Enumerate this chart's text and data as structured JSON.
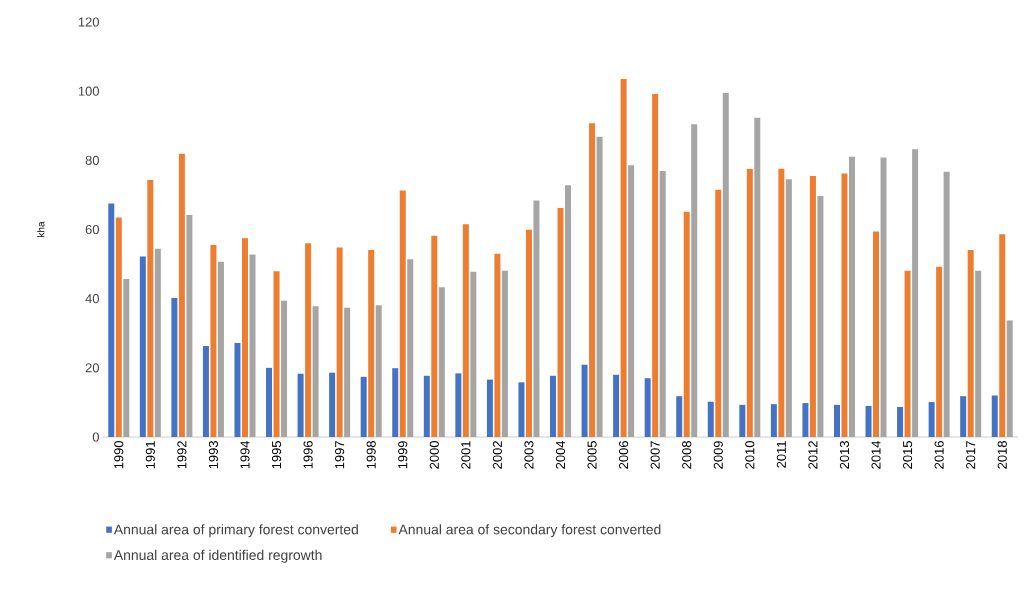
{
  "chart_data": {
    "type": "bar",
    "ylabel": "kha",
    "categories": [
      "1990",
      "1991",
      "1992",
      "1993",
      "1994",
      "1995",
      "1996",
      "1997",
      "1998",
      "1999",
      "2000",
      "2001",
      "2002",
      "2003",
      "2004",
      "2005",
      "2006",
      "2007",
      "2008",
      "2009",
      "2010",
      "2011",
      "2012",
      "2013",
      "2014",
      "2015",
      "2016",
      "2017",
      "2018"
    ],
    "series": [
      {
        "name": "Annual area of primary forest converted",
        "color": "#4472c4",
        "values": [
          67.5,
          52.2,
          40.2,
          26.3,
          27.2,
          20.0,
          18.3,
          18.6,
          17.4,
          19.9,
          17.7,
          18.4,
          16.6,
          15.8,
          17.7,
          20.9,
          18.0,
          17.0,
          11.8,
          10.2,
          9.3,
          9.5,
          9.8,
          9.3,
          9.0,
          8.7,
          10.1,
          11.8,
          12.0
        ]
      },
      {
        "name": "Annual area of secondary forest converted",
        "color": "#ed7d31",
        "values": [
          63.5,
          74.3,
          81.9,
          55.5,
          57.5,
          47.9,
          56.0,
          54.8,
          54.1,
          71.3,
          58.2,
          61.5,
          53.0,
          59.9,
          66.2,
          90.7,
          103.5,
          99.2,
          65.1,
          71.5,
          77.5,
          77.6,
          75.5,
          76.2,
          59.4,
          48.1,
          49.2,
          54.1,
          58.6
        ]
      },
      {
        "name": "Annual area of identified regrowth",
        "color": "#a5a5a5",
        "values": [
          45.7,
          54.4,
          64.2,
          50.7,
          52.8,
          39.4,
          37.8,
          37.4,
          38.1,
          51.4,
          43.3,
          47.8,
          48.1,
          68.4,
          72.8,
          86.8,
          78.6,
          76.9,
          90.4,
          99.5,
          92.3,
          74.5,
          69.7,
          81.0,
          80.8,
          83.2,
          76.7,
          48.1,
          33.7
        ]
      }
    ],
    "ylim": [
      0,
      120
    ],
    "yticks": [
      0,
      20,
      40,
      60,
      80,
      100,
      120
    ],
    "legend": "bottom"
  }
}
